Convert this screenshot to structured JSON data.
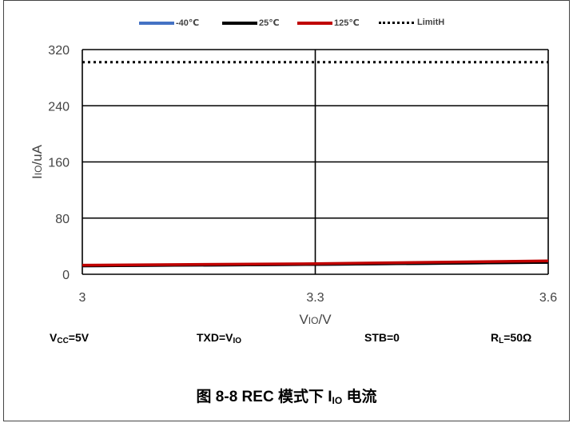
{
  "chart_data": {
    "type": "line",
    "title": "",
    "xlabel": "VIO/V",
    "xlabel_main": "V",
    "xlabel_sub": "IO",
    "xlabel_tail": "/V",
    "ylabel": "IIO/uA",
    "ylabel_main": "I",
    "ylabel_sub": "IO",
    "ylabel_tail": "/uA",
    "xlim": [
      3,
      3.6
    ],
    "ylim": [
      0,
      320
    ],
    "x_ticks": [
      3,
      3.3,
      3.6
    ],
    "x_tick_labels": [
      "3",
      "3.3",
      "3.6"
    ],
    "y_ticks": [
      0,
      80,
      160,
      240,
      320
    ],
    "y_tick_labels": [
      "0",
      "80",
      "160",
      "240",
      "320"
    ],
    "grid": true,
    "legend_position": "top",
    "series": [
      {
        "name": "-40℃",
        "color": "#4472C4",
        "style": "solid",
        "x": [
          3,
          3.3,
          3.6
        ],
        "y": [
          12,
          14,
          17
        ]
      },
      {
        "name": "25℃",
        "color": "#000000",
        "style": "solid",
        "x": [
          3,
          3.3,
          3.6
        ],
        "y": [
          12,
          14,
          17
        ]
      },
      {
        "name": "125℃",
        "color": "#C00000",
        "style": "solid",
        "x": [
          3,
          3.3,
          3.6
        ],
        "y": [
          13,
          15,
          19
        ]
      },
      {
        "name": "LimitH",
        "color": "#000000",
        "style": "dotted",
        "x": [
          3,
          3.3,
          3.6
        ],
        "y": [
          302,
          302,
          302
        ]
      }
    ]
  },
  "conditions": {
    "vcc": {
      "main": "V",
      "sub": "CC",
      "tail": "=5V"
    },
    "txd": {
      "main": "TXD=V",
      "sub": "IO",
      "tail": ""
    },
    "stb": {
      "main": "STB=0",
      "sub": "",
      "tail": ""
    },
    "rl": {
      "main": "R",
      "sub": "L",
      "tail": "=50Ω"
    }
  },
  "caption": {
    "prefix": "图 8-8 REC 模式下 I",
    "sub": "IO",
    "suffix": " 电流"
  }
}
